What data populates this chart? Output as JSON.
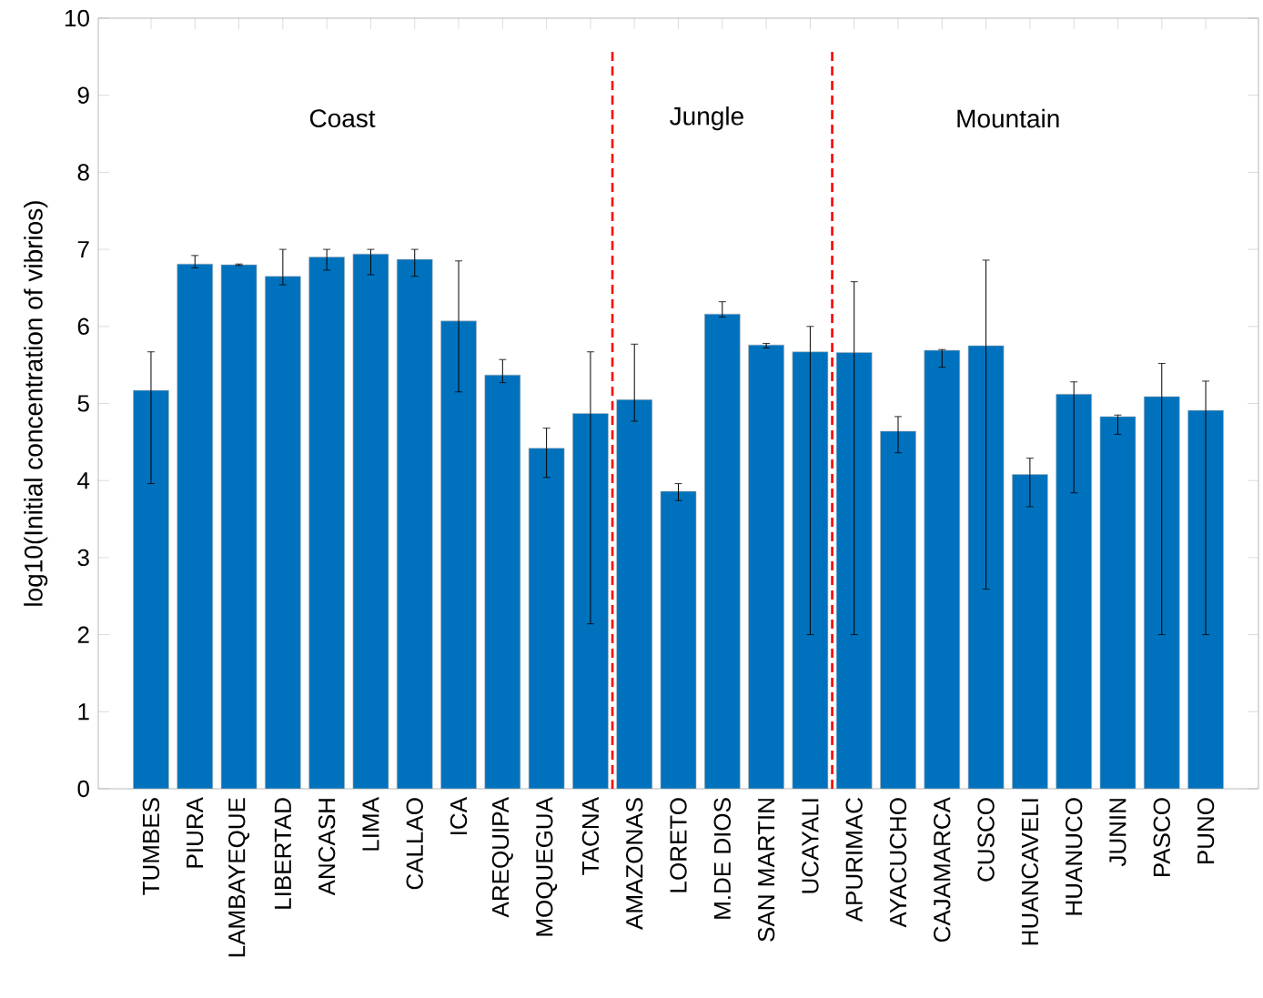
{
  "chart_data": {
    "type": "bar",
    "ylabel": "log10(Initial concentration of vibrios)",
    "categories": [
      "TUMBES",
      "PIURA",
      "LAMBAYEQUE",
      "LIBERTAD",
      "ANCASH",
      "LIMA",
      "CALLAO",
      "ICA",
      "AREQUIPA",
      "MOQUEGUA",
      "TACNA",
      "AMAZONAS",
      "LORETO",
      "M.DE DIOS",
      "SAN MARTIN",
      "UCAYALI",
      "APURIMAC",
      "AYACUCHO",
      "CAJAMARCA",
      "CUSCO",
      "HUANCAVELI",
      "HUANUCO",
      "JUNIN",
      "PASCO",
      "PUNO"
    ],
    "values": [
      5.17,
      6.81,
      6.8,
      6.65,
      6.9,
      6.94,
      6.87,
      6.07,
      5.37,
      4.42,
      4.87,
      5.05,
      3.86,
      6.16,
      5.76,
      5.67,
      5.66,
      4.64,
      5.69,
      5.75,
      4.08,
      5.12,
      4.83,
      5.09,
      4.91
    ],
    "errors": [
      [
        3.96,
        5.67
      ],
      [
        6.76,
        6.92
      ],
      [
        6.79,
        6.81
      ],
      [
        6.54,
        7.0
      ],
      [
        6.73,
        7.0
      ],
      [
        6.67,
        7.0
      ],
      [
        6.65,
        7.0
      ],
      [
        5.15,
        6.85
      ],
      [
        5.27,
        5.57
      ],
      [
        4.04,
        4.68
      ],
      [
        2.14,
        5.67
      ],
      [
        4.77,
        5.77
      ],
      [
        3.74,
        3.96
      ],
      [
        6.12,
        6.32
      ],
      [
        5.72,
        5.78
      ],
      [
        2.0,
        6.0
      ],
      [
        2.0,
        6.58
      ],
      [
        4.36,
        4.83
      ],
      [
        5.47,
        5.7
      ],
      [
        2.59,
        6.86
      ],
      [
        3.66,
        4.29
      ],
      [
        3.84,
        5.28
      ],
      [
        4.6,
        4.85
      ],
      [
        2.0,
        5.52
      ],
      [
        2.0,
        5.29
      ]
    ],
    "color": "#0072bd",
    "ylim": [
      0,
      10
    ],
    "yticks": [
      0,
      1,
      2,
      3,
      4,
      5,
      6,
      7,
      8,
      9,
      10
    ],
    "annotations": [
      "Coast",
      "Jungle",
      "Mountain"
    ]
  }
}
